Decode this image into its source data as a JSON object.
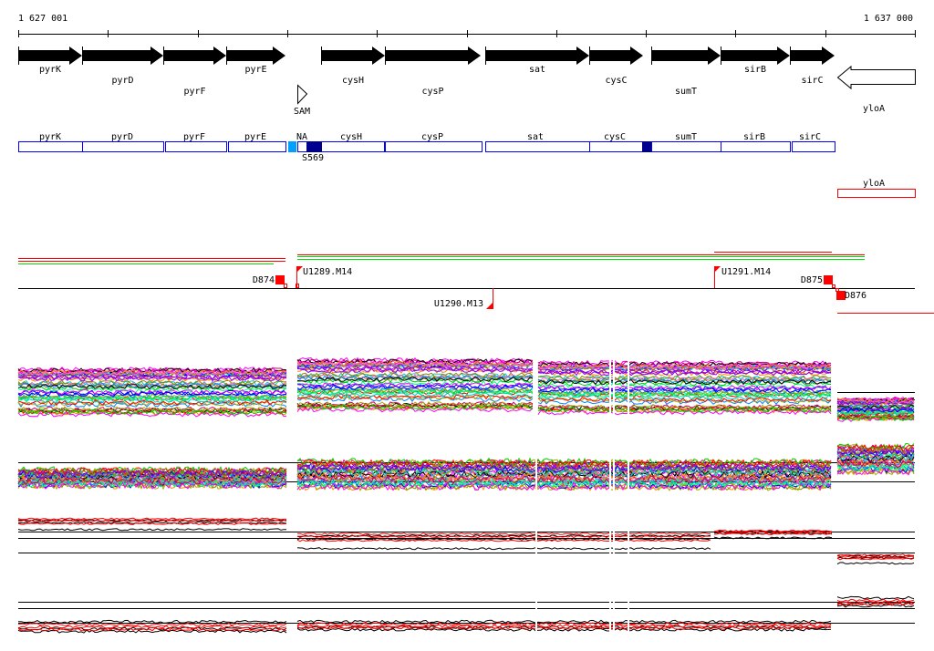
{
  "scale": {
    "start_label": "1 627 001",
    "end_label": "1 637 000"
  },
  "genes": [
    {
      "name": "pyrK",
      "strand": "+"
    },
    {
      "name": "pyrD",
      "strand": "+"
    },
    {
      "name": "pyrF",
      "strand": "+"
    },
    {
      "name": "pyrE",
      "strand": "+"
    },
    {
      "name": "cysH",
      "strand": "+"
    },
    {
      "name": "cysP",
      "strand": "+"
    },
    {
      "name": "sat",
      "strand": "+"
    },
    {
      "name": "cysC",
      "strand": "+"
    },
    {
      "name": "sumT",
      "strand": "+"
    },
    {
      "name": "sirB",
      "strand": "+"
    },
    {
      "name": "sirC",
      "strand": "+"
    },
    {
      "name": "yloA",
      "strand": "-"
    }
  ],
  "riboswitch": {
    "label": "SAM"
  },
  "transcripts": {
    "labels": [
      "pyrK",
      "pyrD",
      "pyrF",
      "pyrE",
      "NA",
      "cysH",
      "cysP",
      "sat",
      "cysC",
      "sumT",
      "sirB",
      "sirC"
    ],
    "segment_label": "S569",
    "antisense_label": "yloA"
  },
  "features": {
    "D874": "D874",
    "U1289": "U1289.M14",
    "U1290": "U1290.M13",
    "U1291": "U1291.M14",
    "D875": "D875",
    "D876": "D876"
  },
  "colors": {
    "gene": "#000000",
    "transcript": "#0000ff",
    "transcript_light": "#00a0ff",
    "transcript_dark": "#000090",
    "feature": "#ff0000",
    "green": "#00dd00"
  }
}
